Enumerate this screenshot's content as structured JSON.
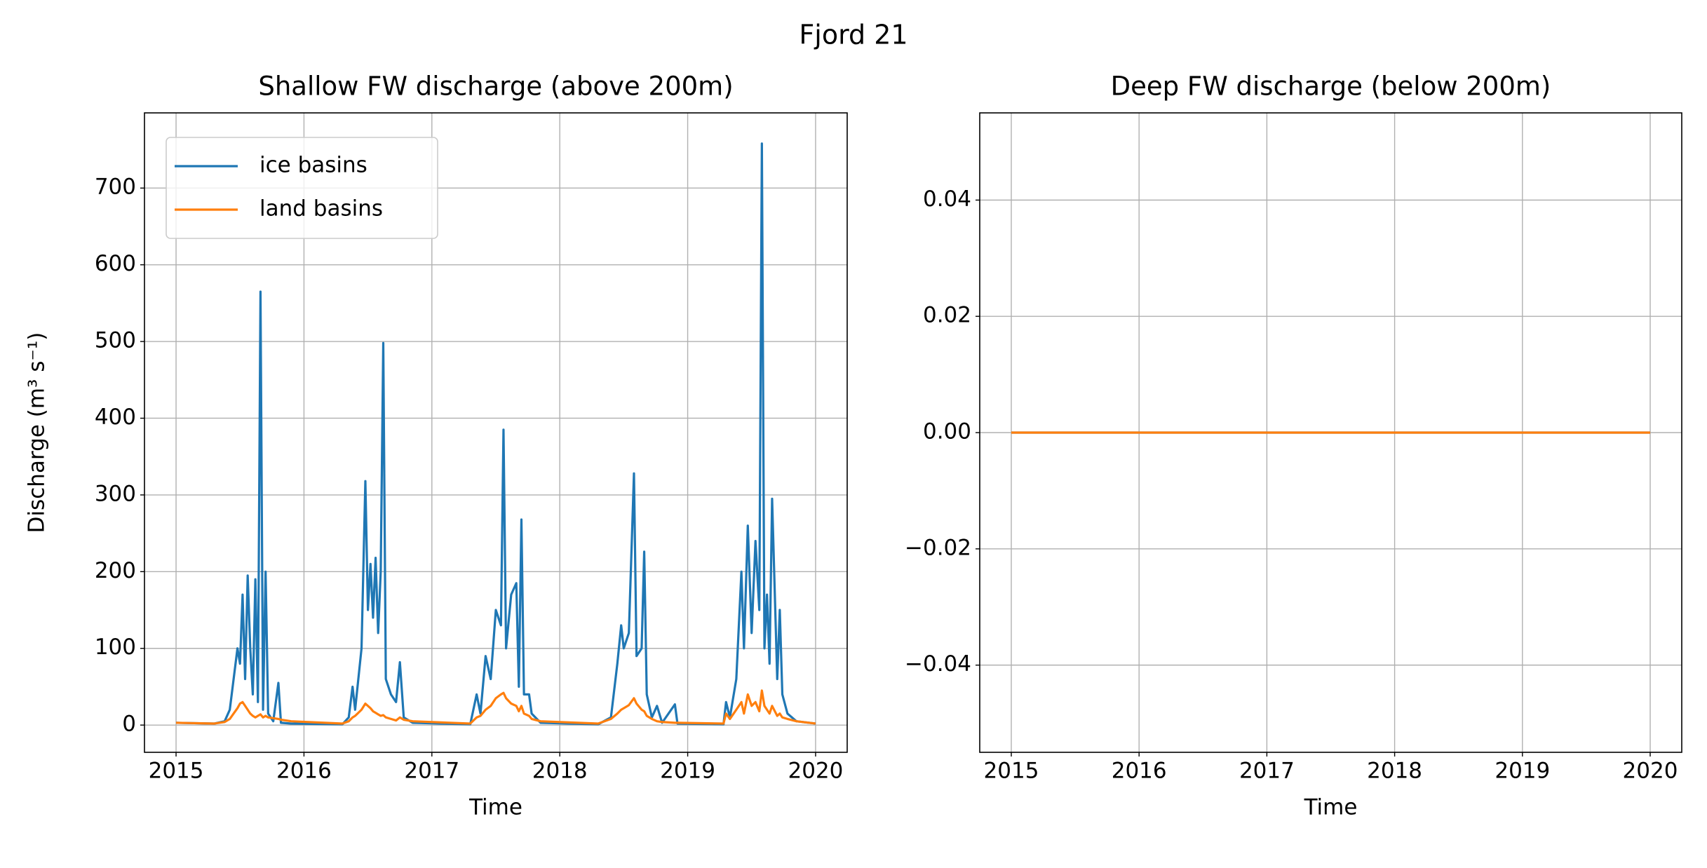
{
  "title": "Fjord 21",
  "chart_data": [
    {
      "type": "line",
      "title": "Shallow FW discharge (above 200m)",
      "xlabel": "Time",
      "ylabel": "Discharge (m³ s⁻¹)",
      "x": [
        2015.0,
        2015.3,
        2015.38,
        2015.42,
        2015.45,
        2015.48,
        2015.5,
        2015.52,
        2015.54,
        2015.56,
        2015.58,
        2015.6,
        2015.62,
        2015.64,
        2015.66,
        2015.68,
        2015.7,
        2015.72,
        2015.76,
        2015.8,
        2015.82,
        2015.9,
        2016.3,
        2016.35,
        2016.38,
        2016.4,
        2016.45,
        2016.48,
        2016.5,
        2016.52,
        2016.54,
        2016.56,
        2016.58,
        2016.6,
        2016.62,
        2016.64,
        2016.68,
        2016.72,
        2016.75,
        2016.78,
        2016.85,
        2017.3,
        2017.35,
        2017.38,
        2017.42,
        2017.46,
        2017.5,
        2017.54,
        2017.56,
        2017.58,
        2017.62,
        2017.66,
        2017.68,
        2017.7,
        2017.72,
        2017.76,
        2017.78,
        2017.85,
        2018.3,
        2018.4,
        2018.45,
        2018.48,
        2018.5,
        2018.54,
        2018.58,
        2018.6,
        2018.64,
        2018.66,
        2018.68,
        2018.72,
        2018.76,
        2018.8,
        2018.9,
        2018.92,
        2019.28,
        2019.3,
        2019.33,
        2019.38,
        2019.42,
        2019.44,
        2019.47,
        2019.5,
        2019.53,
        2019.56,
        2019.58,
        2019.6,
        2019.62,
        2019.64,
        2019.66,
        2019.7,
        2019.72,
        2019.74,
        2019.78,
        2019.85,
        2020.0
      ],
      "series": [
        {
          "name": "ice basins",
          "color": "#1f77b4",
          "values": [
            3,
            2,
            5,
            20,
            60,
            100,
            80,
            170,
            60,
            195,
            100,
            40,
            190,
            30,
            565,
            20,
            200,
            15,
            5,
            55,
            3,
            2,
            1,
            10,
            50,
            20,
            100,
            318,
            150,
            210,
            140,
            218,
            120,
            200,
            498,
            60,
            40,
            30,
            82,
            10,
            3,
            1,
            40,
            15,
            90,
            60,
            150,
            130,
            385,
            100,
            170,
            185,
            50,
            268,
            40,
            40,
            15,
            3,
            1,
            10,
            80,
            130,
            100,
            120,
            328,
            90,
            100,
            226,
            40,
            10,
            25,
            3,
            27,
            2,
            1,
            30,
            10,
            60,
            200,
            100,
            260,
            120,
            240,
            150,
            758,
            100,
            170,
            80,
            295,
            60,
            150,
            40,
            15,
            5,
            2
          ]
        },
        {
          "name": "land basins",
          "color": "#ff7f0e",
          "values": [
            3,
            2,
            4,
            8,
            15,
            22,
            28,
            30,
            25,
            20,
            15,
            12,
            10,
            12,
            14,
            10,
            12,
            10,
            9,
            8,
            7,
            5,
            2,
            5,
            10,
            12,
            20,
            28,
            25,
            22,
            18,
            16,
            14,
            12,
            13,
            10,
            8,
            6,
            10,
            7,
            5,
            2,
            10,
            12,
            20,
            25,
            35,
            40,
            42,
            35,
            28,
            25,
            18,
            25,
            15,
            12,
            8,
            5,
            2,
            8,
            15,
            20,
            22,
            26,
            35,
            28,
            20,
            18,
            12,
            8,
            5,
            4,
            3,
            3,
            2,
            15,
            8,
            20,
            30,
            15,
            40,
            25,
            30,
            18,
            45,
            25,
            20,
            15,
            25,
            12,
            15,
            10,
            8,
            5,
            2
          ]
        }
      ],
      "xlim": [
        2014.753,
        2020.247
      ],
      "ylim": [
        -35.5,
        798
      ],
      "xticks": [
        2015,
        2016,
        2017,
        2018,
        2019,
        2020
      ],
      "yticks": [
        0,
        100,
        200,
        300,
        400,
        500,
        600,
        700
      ],
      "grid": true,
      "legend": "upper left"
    },
    {
      "type": "line",
      "title": "Deep FW discharge (below 200m)",
      "xlabel": "Time",
      "x": [
        2015,
        2020
      ],
      "series": [
        {
          "color": "#1f77b4",
          "values": [
            0,
            0
          ]
        },
        {
          "color": "#ff7f0e",
          "values": [
            0,
            0
          ]
        }
      ],
      "xlim": [
        2014.753,
        2020.247
      ],
      "ylim": [
        -0.055,
        0.055
      ],
      "xticks": [
        2015,
        2016,
        2017,
        2018,
        2019,
        2020
      ],
      "yticks": [
        {
          "value": -0.04,
          "label": "−0.04"
        },
        {
          "value": -0.02,
          "label": "−0.02"
        },
        {
          "value": 0,
          "label": "0.00"
        },
        0.02,
        0.04
      ],
      "grid": true
    }
  ]
}
